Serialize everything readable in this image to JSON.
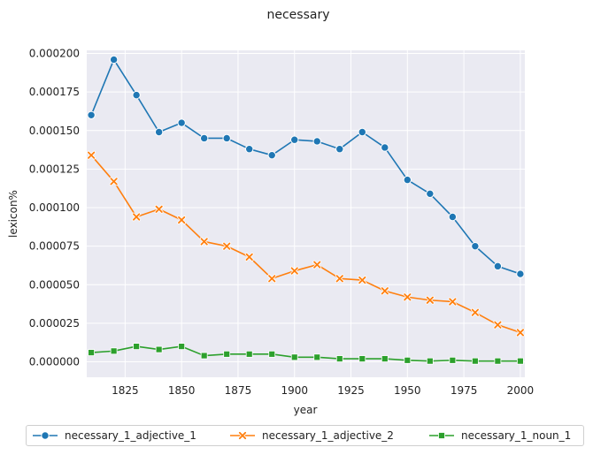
{
  "chart_data": {
    "type": "line",
    "title": "necessary",
    "xlabel": "year",
    "ylabel": "lexicon%",
    "xlim": [
      1808,
      2002
    ],
    "ylim": [
      -1e-05,
      0.000202
    ],
    "x_ticks": [
      1825,
      1850,
      1875,
      1900,
      1925,
      1950,
      1975,
      2000
    ],
    "y_ticks": [
      0.0,
      2.5e-05,
      5e-05,
      7.5e-05,
      0.0001,
      0.000125,
      0.00015,
      0.000175,
      0.0002
    ],
    "y_tick_labels": [
      "0.000000",
      "0.000025",
      "0.000050",
      "0.000075",
      "0.000100",
      "0.000125",
      "0.000150",
      "0.000175",
      "0.000200"
    ],
    "grid": true,
    "legend_position": "bottom",
    "x": [
      1810,
      1820,
      1830,
      1840,
      1850,
      1860,
      1870,
      1880,
      1890,
      1900,
      1910,
      1920,
      1930,
      1940,
      1950,
      1960,
      1970,
      1980,
      1990,
      2000
    ],
    "series": [
      {
        "name": "necessary_1_adjective_1",
        "color": "#1f77b4",
        "marker": "circle",
        "values": [
          0.00016,
          0.000196,
          0.000173,
          0.000149,
          0.000155,
          0.000145,
          0.000145,
          0.000138,
          0.000134,
          0.000144,
          0.000143,
          0.000138,
          0.000149,
          0.000139,
          0.000118,
          0.000109,
          9.4e-05,
          7.5e-05,
          6.2e-05,
          5.7e-05
        ]
      },
      {
        "name": "necessary_1_adjective_2",
        "color": "#ff7f0e",
        "marker": "x",
        "values": [
          0.000134,
          0.000117,
          9.4e-05,
          9.9e-05,
          9.2e-05,
          7.8e-05,
          7.5e-05,
          6.8e-05,
          5.4e-05,
          5.9e-05,
          6.3e-05,
          5.4e-05,
          5.3e-05,
          4.6e-05,
          4.2e-05,
          4e-05,
          3.9e-05,
          3.2e-05,
          2.4e-05,
          1.9e-05
        ]
      },
      {
        "name": "necessary_1_noun_1",
        "color": "#2ca02c",
        "marker": "square",
        "values": [
          6e-06,
          7e-06,
          1e-05,
          8e-06,
          1e-05,
          4e-06,
          5e-06,
          5e-06,
          5e-06,
          3e-06,
          3e-06,
          2e-06,
          2e-06,
          2e-06,
          1e-06,
          5e-07,
          1e-06,
          5e-07,
          5e-07,
          5e-07
        ]
      }
    ]
  }
}
